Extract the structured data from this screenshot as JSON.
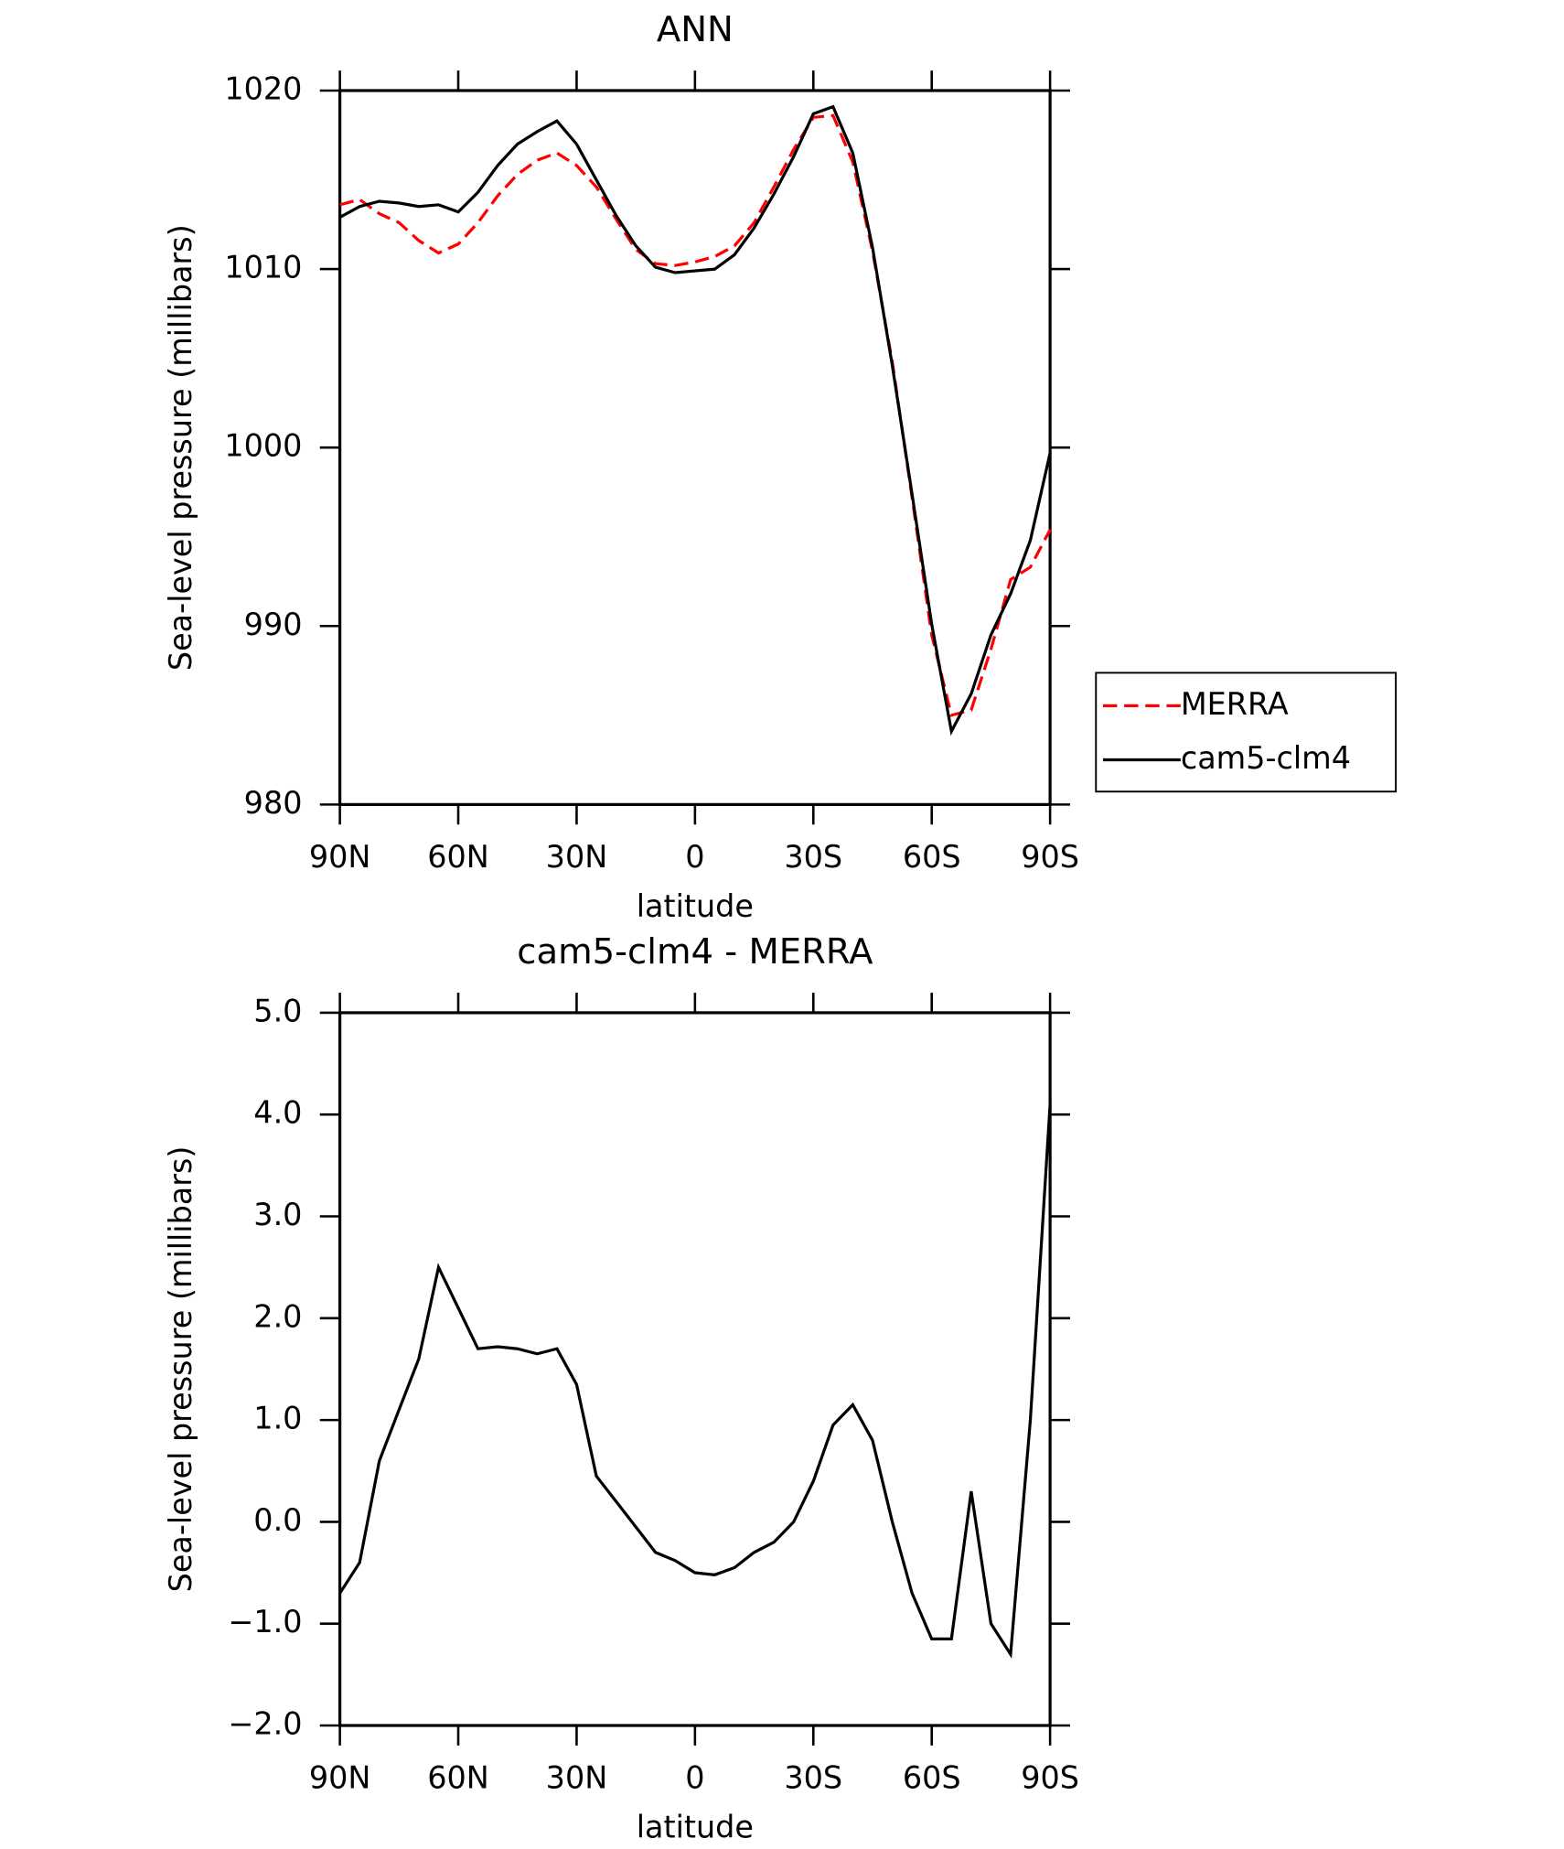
{
  "chart_data": [
    {
      "type": "line",
      "title": "ANN",
      "xlabel": "latitude",
      "ylabel": "Sea-level pressure (millibars)",
      "x": [
        90,
        85,
        80,
        75,
        70,
        65,
        60,
        55,
        50,
        45,
        40,
        35,
        30,
        25,
        20,
        15,
        10,
        5,
        0,
        -5,
        -10,
        -15,
        -20,
        -25,
        -30,
        -35,
        -40,
        -45,
        -50,
        -55,
        -60,
        -65,
        -70,
        -75,
        -80,
        -85,
        -90
      ],
      "series": [
        {
          "name": "MERRA",
          "color": "#ff0000",
          "dash": true,
          "values": [
            1013.6,
            1013.9,
            1013.1,
            1012.6,
            1011.6,
            1010.9,
            1011.4,
            1012.6,
            1014.1,
            1015.3,
            1016.1,
            1016.5,
            1015.8,
            1014.6,
            1012.8,
            1011.1,
            1010.3,
            1010.2,
            1010.4,
            1010.7,
            1011.3,
            1012.6,
            1014.6,
            1016.7,
            1018.5,
            1018.6,
            1016.0,
            1011.0,
            1004.8,
            997.2,
            989.5,
            985.0,
            985.3,
            988.7,
            992.6,
            993.3,
            995.4
          ]
        },
        {
          "name": "cam5-clm4",
          "color": "#000000",
          "dash": false,
          "values": [
            1012.9,
            1013.5,
            1013.8,
            1013.7,
            1013.5,
            1013.6,
            1013.2,
            1014.3,
            1015.8,
            1017.0,
            1017.7,
            1018.3,
            1017.0,
            1015.0,
            1013.0,
            1011.3,
            1010.1,
            1009.8,
            1009.9,
            1010.0,
            1010.8,
            1012.3,
            1014.2,
            1016.3,
            1018.7,
            1019.1,
            1016.5,
            1011.2,
            1004.6,
            997.4,
            990.1,
            984.1,
            986.2,
            989.5,
            991.8,
            994.8,
            999.7
          ]
        }
      ],
      "xlim": [
        90,
        -90
      ],
      "xticks": [
        {
          "value": 90,
          "label": "90N"
        },
        {
          "value": 60,
          "label": "60N"
        },
        {
          "value": 30,
          "label": "30N"
        },
        0,
        {
          "value": -30,
          "label": "30S"
        },
        {
          "value": -60,
          "label": "60S"
        },
        {
          "value": -90,
          "label": "90S"
        }
      ],
      "ylim": [
        980,
        1020
      ],
      "yticks": [
        980,
        990,
        1000,
        1010,
        1020
      ],
      "legend": "right"
    },
    {
      "type": "line",
      "title": "cam5-clm4 - MERRA",
      "xlabel": "latitude",
      "ylabel": "Sea-level pressure (millibars)",
      "x": [
        90,
        85,
        80,
        75,
        70,
        65,
        60,
        55,
        50,
        45,
        40,
        35,
        30,
        25,
        20,
        15,
        10,
        5,
        0,
        -5,
        -10,
        -15,
        -20,
        -25,
        -30,
        -35,
        -40,
        -45,
        -50,
        -55,
        -60,
        -65,
        -70,
        -75,
        -80,
        -85,
        -90
      ],
      "series": [
        {
          "color": "#000000",
          "dash": false,
          "values": [
            -0.7,
            -0.4,
            0.6,
            1.1,
            1.6,
            2.5,
            2.1,
            1.7,
            1.72,
            1.7,
            1.65,
            1.7,
            1.35,
            0.45,
            0.2,
            -0.05,
            -0.3,
            -0.38,
            -0.5,
            -0.52,
            -0.45,
            -0.3,
            -0.2,
            0.0,
            0.4,
            0.95,
            1.15,
            0.8,
            0.0,
            -0.7,
            -1.15,
            -1.15,
            0.3,
            -1.0,
            -1.3,
            1.0,
            4.1
          ]
        }
      ],
      "xlim": [
        90,
        -90
      ],
      "xticks": [
        {
          "value": 90,
          "label": "90N"
        },
        {
          "value": 60,
          "label": "60N"
        },
        {
          "value": 30,
          "label": "30N"
        },
        0,
        {
          "value": -30,
          "label": "30S"
        },
        {
          "value": -60,
          "label": "60S"
        },
        {
          "value": -90,
          "label": "90S"
        }
      ],
      "ylim": [
        -2,
        5
      ],
      "yticks": [
        {
          "value": -2,
          "label": "−2.0"
        },
        {
          "value": -1,
          "label": "−1.0"
        },
        {
          "value": 0,
          "label": "0.0"
        },
        {
          "value": 1,
          "label": "1.0"
        },
        {
          "value": 2,
          "label": "2.0"
        },
        {
          "value": 3,
          "label": "3.0"
        },
        {
          "value": 4,
          "label": "4.0"
        },
        {
          "value": 5,
          "label": "5.0"
        }
      ]
    }
  ]
}
